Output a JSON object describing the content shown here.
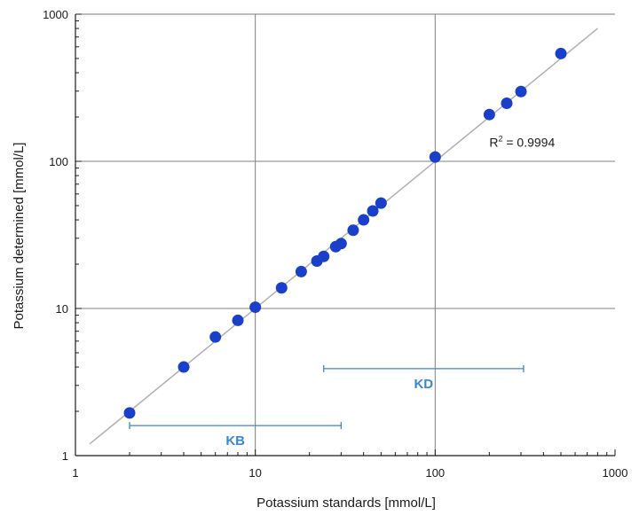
{
  "chart_data": {
    "type": "scatter",
    "title": "",
    "xlabel": "Potassium standards [mmol/L]",
    "ylabel": "Potassium determined [mmol/L]",
    "xscale": "log",
    "yscale": "log",
    "xlim": [
      1,
      1000
    ],
    "ylim": [
      1,
      1000
    ],
    "grid": true,
    "x_ticks": [
      "1",
      "10",
      "100",
      "1000"
    ],
    "y_ticks": [
      "1",
      "10",
      "100",
      "1000"
    ],
    "series": [
      {
        "x": [
          2,
          4,
          6,
          8,
          10,
          14,
          18,
          22,
          24,
          28,
          30,
          35,
          40,
          45,
          50,
          100,
          200,
          250,
          300,
          500
        ],
        "y": [
          1.95,
          4.0,
          6.4,
          8.3,
          10.2,
          13.8,
          17.8,
          21.0,
          22.6,
          26.3,
          27.6,
          34.0,
          40.0,
          46.0,
          52.0,
          107,
          208,
          248,
          298,
          540
        ]
      }
    ],
    "fit_line": {
      "x": [
        1.2,
        800
      ],
      "y": [
        1.2,
        800
      ]
    },
    "annotations": {
      "r_squared_prefix": "R",
      "r_squared_sup": "2",
      "r_squared_value": " = 0.9994",
      "r_squared_at": [
        200,
        135
      ]
    },
    "ranges": [
      {
        "label": "KB",
        "from": 2,
        "to": 30,
        "level": 1.6
      },
      {
        "label": "KD",
        "from": 24,
        "to": 310,
        "level": 3.9
      }
    ],
    "colors": {
      "marker": "#1a3fc9",
      "fit_line": "#b0b0b0",
      "grid": "#7f7f7f",
      "axis": "#1a1a1a",
      "range": "#3a86d4",
      "background": "#ffffff"
    }
  }
}
